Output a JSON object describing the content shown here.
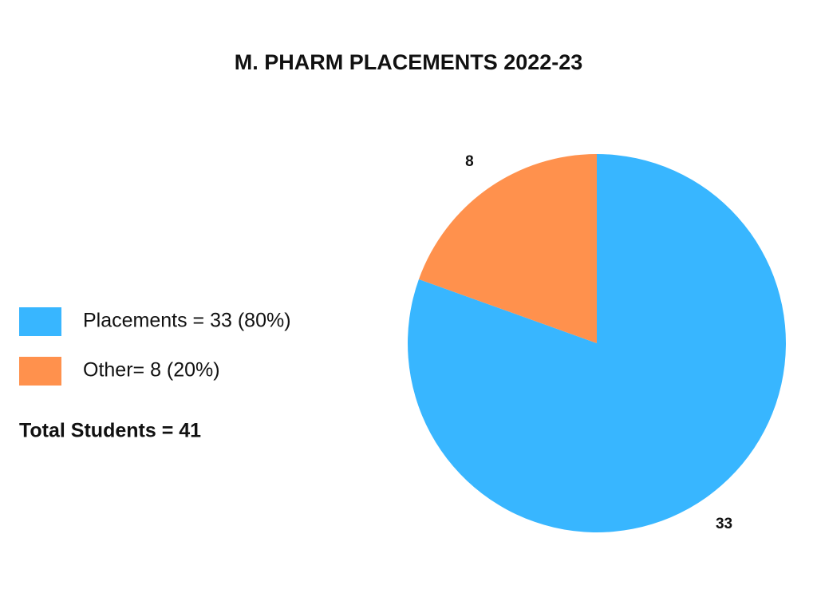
{
  "chart_data": {
    "type": "pie",
    "title": "M. PHARM PLACEMENTS 2022-23",
    "categories": [
      "Placements = 33 (80%)",
      "Other= 8 (20%)"
    ],
    "values": [
      33,
      8
    ],
    "colors": [
      "#38b6ff",
      "#ff914d"
    ],
    "annotation": "Total Students = 41"
  }
}
